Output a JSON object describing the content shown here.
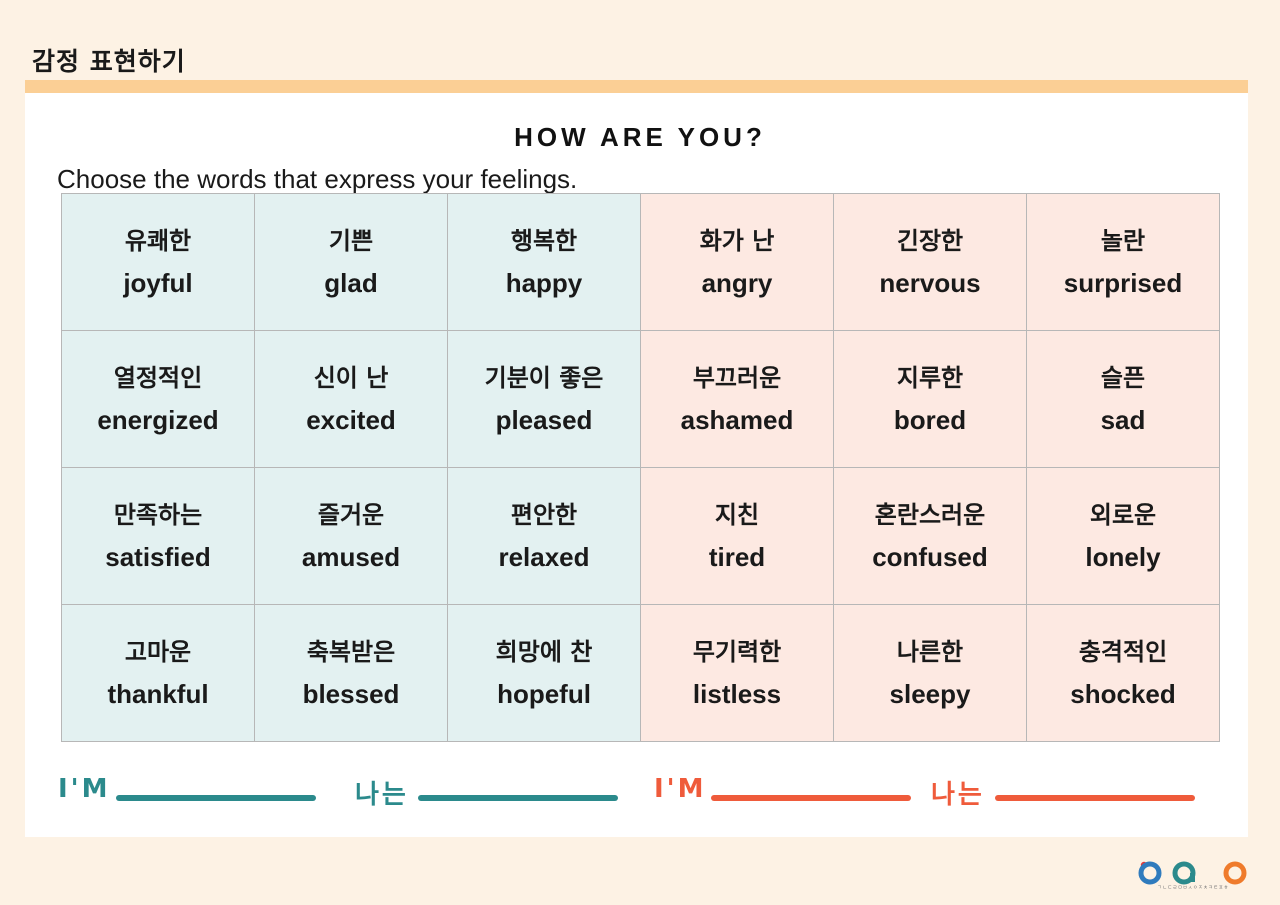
{
  "header": {
    "title": "감정 표현하기"
  },
  "card": {
    "heading": "HOW ARE YOU?",
    "instruction": "Choose the words that express your feelings."
  },
  "colors": {
    "positive_bg": "#e3f1f1",
    "negative_bg": "#fde9e2",
    "teal": "#2b8a8c",
    "orange": "#ef5b3b",
    "accent_bar": "#fbcf95",
    "page_bg": "#fdf2e4"
  },
  "feelings": [
    [
      {
        "kr": "유쾌한",
        "en": "joyful",
        "tone": "pos"
      },
      {
        "kr": "기쁜",
        "en": "glad",
        "tone": "pos"
      },
      {
        "kr": "행복한",
        "en": "happy",
        "tone": "pos"
      },
      {
        "kr": "화가 난",
        "en": "angry",
        "tone": "neg"
      },
      {
        "kr": "긴장한",
        "en": "nervous",
        "tone": "neg"
      },
      {
        "kr": "놀란",
        "en": "surprised",
        "tone": "neg"
      }
    ],
    [
      {
        "kr": "열정적인",
        "en": "energized",
        "tone": "pos"
      },
      {
        "kr": "신이 난",
        "en": "excited",
        "tone": "pos"
      },
      {
        "kr": "기분이 좋은",
        "en": "pleased",
        "tone": "pos"
      },
      {
        "kr": "부끄러운",
        "en": "ashamed",
        "tone": "neg"
      },
      {
        "kr": "지루한",
        "en": "bored",
        "tone": "neg"
      },
      {
        "kr": "슬픈",
        "en": "sad",
        "tone": "neg"
      }
    ],
    [
      {
        "kr": "만족하는",
        "en": "satisfied",
        "tone": "pos"
      },
      {
        "kr": "즐거운",
        "en": "amused",
        "tone": "pos"
      },
      {
        "kr": "편안한",
        "en": "relaxed",
        "tone": "pos"
      },
      {
        "kr": "지친",
        "en": "tired",
        "tone": "neg"
      },
      {
        "kr": "혼란스러운",
        "en": "confused",
        "tone": "neg"
      },
      {
        "kr": "외로운",
        "en": "lonely",
        "tone": "neg"
      }
    ],
    [
      {
        "kr": "고마운",
        "en": "thankful",
        "tone": "pos"
      },
      {
        "kr": "축복받은",
        "en": "blessed",
        "tone": "pos"
      },
      {
        "kr": "희망에 찬",
        "en": "hopeful",
        "tone": "pos"
      },
      {
        "kr": "무기력한",
        "en": "listless",
        "tone": "neg"
      },
      {
        "kr": "나른한",
        "en": "sleepy",
        "tone": "neg"
      },
      {
        "kr": "충격적인",
        "en": "shocked",
        "tone": "neg"
      }
    ]
  ],
  "prompts": [
    {
      "label": "I'M",
      "color": "teal"
    },
    {
      "label": "나는",
      "color": "teal"
    },
    {
      "label": "I'M",
      "color": "orange"
    },
    {
      "label": "나는",
      "color": "orange"
    }
  ],
  "logo": {
    "icon": "organization-logo",
    "subtitle": "ㄱㄴㄷㄹㅁㅂㅅㅇㅈㅊㅋㅌㅍㅎ"
  }
}
